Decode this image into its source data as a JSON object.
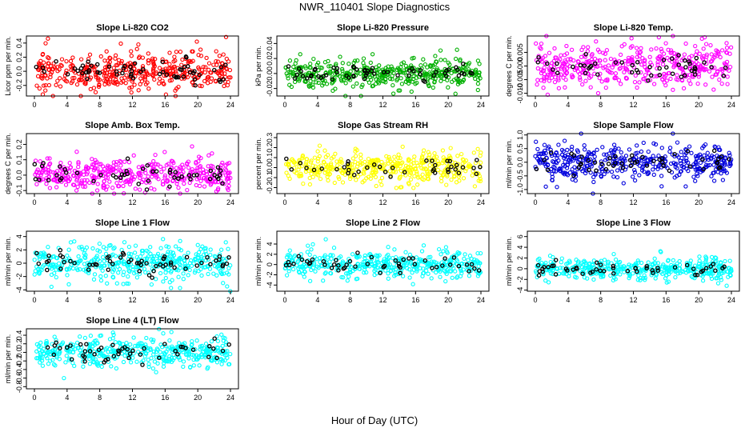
{
  "title": "NWR_110401  Slope Diagnostics",
  "xlabel": "Hour of Day (UTC)",
  "colors": {
    "background": "#ffffff",
    "axis": "#000000",
    "highlight": "#000000"
  },
  "chart_data": [
    {
      "type": "scatter",
      "title": "Slope Li-820 CO2",
      "ylabel": "Licor ppm per min.",
      "color": "#ff0000",
      "xlim": [
        0,
        24
      ],
      "ylim": [
        -0.35,
        0.5
      ],
      "xticks": [
        0,
        4,
        8,
        12,
        16,
        20,
        24
      ],
      "yticks": [
        -0.2,
        0.0,
        0.2,
        0.4
      ],
      "ytick_labels": [
        "-0.2",
        "0.0",
        "0.2",
        "0.4"
      ],
      "spread": 0.13,
      "n": 420,
      "nb": 60,
      "seed": 11
    },
    {
      "type": "scatter",
      "title": "Slope Li-820 Pressure",
      "ylabel": "kPa per min.",
      "color": "#00b000",
      "xlim": [
        0,
        24
      ],
      "ylim": [
        -0.03,
        0.05
      ],
      "xticks": [
        0,
        4,
        8,
        12,
        16,
        20,
        24
      ],
      "yticks": [
        -0.02,
        0.0,
        0.02,
        0.04
      ],
      "ytick_labels": [
        "-0.02",
        "0.00",
        "0.02",
        "0.04"
      ],
      "spread": 0.009,
      "n": 420,
      "nb": 60,
      "seed": 23
    },
    {
      "type": "scatter",
      "title": "Slope Li-820 Temp.",
      "ylabel": "degrees C per min.",
      "color": "#ff00ff",
      "xlim": [
        0,
        24
      ],
      "ylim": [
        -0.011,
        0.011
      ],
      "xticks": [
        0,
        4,
        8,
        12,
        16,
        20,
        24
      ],
      "yticks": [
        -0.01,
        -0.005,
        0.0,
        0.005
      ],
      "ytick_labels": [
        "-0.010",
        "-0.005",
        "0.000",
        "0.005"
      ],
      "spread": 0.004,
      "n": 420,
      "nb": 50,
      "seed": 37
    },
    {
      "type": "scatter",
      "title": "Slope Amb. Box Temp.",
      "ylabel": "degrees C per min.",
      "color": "#ff00ff",
      "xlim": [
        0,
        24
      ],
      "ylim": [
        -0.12,
        0.27
      ],
      "xticks": [
        0,
        4,
        8,
        12,
        16,
        20,
        24
      ],
      "yticks": [
        -0.1,
        0.0,
        0.1,
        0.2
      ],
      "ytick_labels": [
        "-0.1",
        "0.0",
        "0.1",
        "0.2"
      ],
      "spread": 0.05,
      "n": 420,
      "nb": 50,
      "seed": 41
    },
    {
      "type": "scatter",
      "title": "Slope Gas Stream RH",
      "ylabel": "percent per min.",
      "color": "#ffff00",
      "xlim": [
        0,
        24
      ],
      "ylim": [
        -0.26,
        0.34
      ],
      "xticks": [
        0,
        4,
        8,
        12,
        16,
        20,
        24
      ],
      "yticks": [
        -0.2,
        -0.1,
        0.0,
        0.1,
        0.2,
        0.3
      ],
      "ytick_labels": [
        "-0.2",
        "-0.1",
        "0.0",
        "0.1",
        "0.2",
        "0.3"
      ],
      "spread": 0.08,
      "n": 420,
      "nb": 40,
      "seed": 53
    },
    {
      "type": "scatter",
      "title": "Slope Sample Flow",
      "ylabel": "ml/min per min.",
      "color": "#0000dd",
      "xlim": [
        0,
        24
      ],
      "ylim": [
        -1.15,
        1.05
      ],
      "xticks": [
        0,
        4,
        8,
        12,
        16,
        20,
        24
      ],
      "yticks": [
        -1.0,
        -0.5,
        0.0,
        0.5,
        1.0
      ],
      "ytick_labels": [
        "-1.0",
        "-0.5",
        "0.0",
        "0.5",
        "1.0"
      ],
      "spread": 0.28,
      "n": 420,
      "nb": 50,
      "seed": 67
    },
    {
      "type": "scatter",
      "title": "Slope Line 1 Flow",
      "ylabel": "ml/min per min.",
      "color": "#00ffff",
      "xlim": [
        0,
        24
      ],
      "ylim": [
        -4.2,
        4.8
      ],
      "xticks": [
        0,
        4,
        8,
        12,
        16,
        20,
        24
      ],
      "yticks": [
        -4,
        -2,
        0,
        2,
        4
      ],
      "ytick_labels": [
        "-4",
        "-2",
        "0",
        "2",
        "4"
      ],
      "spread": 1.2,
      "n": 420,
      "nb": 60,
      "seed": 71
    },
    {
      "type": "scatter",
      "title": "Slope Line 2 Flow",
      "ylabel": "ml/min per min.",
      "color": "#00ffff",
      "xlim": [
        0,
        24
      ],
      "ylim": [
        -5.2,
        6.5
      ],
      "xticks": [
        0,
        4,
        8,
        12,
        16,
        20,
        24
      ],
      "yticks": [
        -4,
        -2,
        0,
        2,
        4
      ],
      "ytick_labels": [
        "-4",
        "-2",
        "0",
        "2",
        "4"
      ],
      "spread": 1.3,
      "n": 420,
      "nb": 50,
      "seed": 83
    },
    {
      "type": "scatter",
      "title": "Slope Line 3 Flow",
      "ylabel": "ml/min per min.",
      "color": "#00ffff",
      "xlim": [
        0,
        24
      ],
      "ylim": [
        -4.2,
        7
      ],
      "xticks": [
        0,
        4,
        8,
        12,
        16,
        20,
        24
      ],
      "yticks": [
        -4,
        -2,
        0,
        2,
        4,
        6
      ],
      "ytick_labels": [
        "-4",
        "-2",
        "0",
        "2",
        "4",
        "6"
      ],
      "spread": 1.0,
      "n": 420,
      "nb": 50,
      "seed": 97
    },
    {
      "type": "scatter",
      "title": "Slope Line 4 (LT) Flow",
      "ylabel": "ml/min per min.",
      "color": "#00ffff",
      "xlim": [
        0,
        24
      ],
      "ylim": [
        -0.85,
        0.55
      ],
      "xticks": [
        0,
        4,
        8,
        12,
        16,
        20,
        24
      ],
      "yticks": [
        -0.8,
        -0.6,
        -0.4,
        -0.2,
        0.0,
        0.2,
        0.4
      ],
      "ytick_labels": [
        "-0.8",
        "-0.6",
        "-0.4",
        "-0.2",
        "0.0",
        "0.2",
        "0.4"
      ],
      "spread": 0.17,
      "n": 420,
      "nb": 50,
      "seed": 103
    }
  ]
}
